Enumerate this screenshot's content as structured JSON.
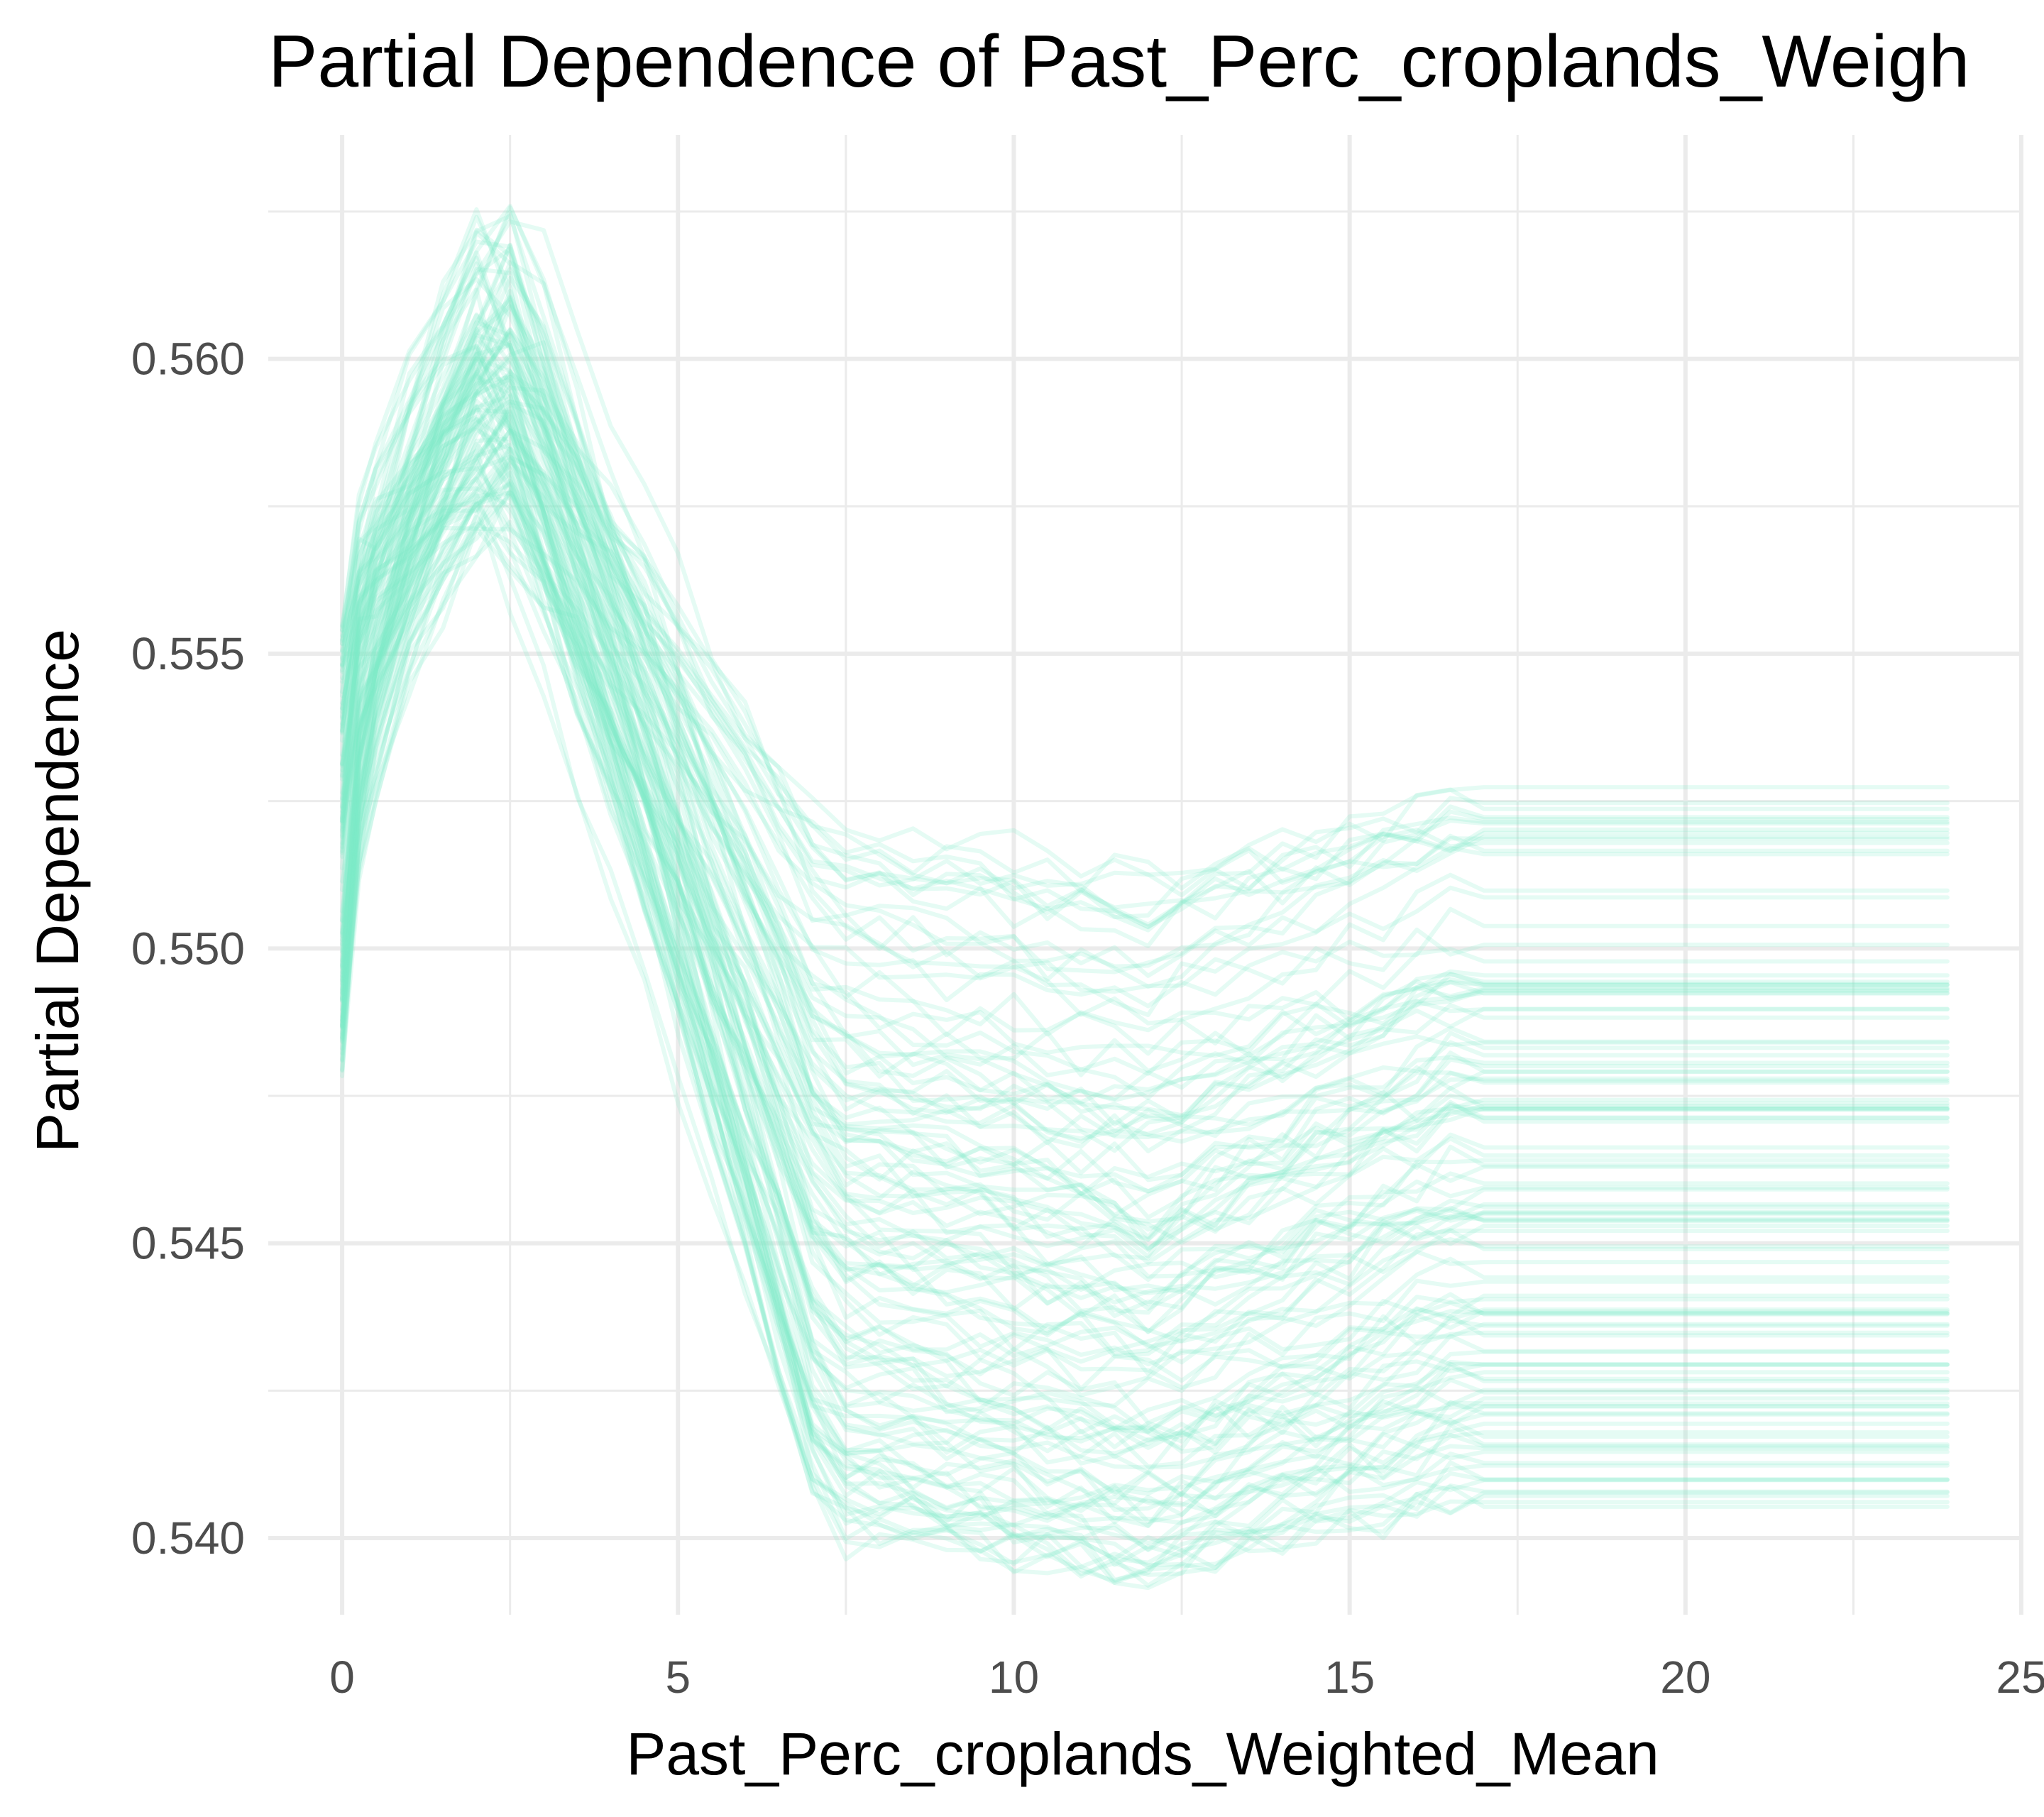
{
  "chart_data": {
    "type": "line",
    "title": "Partial Dependence of Past_Perc_croplands_Weigh",
    "xlabel": "Past_Perc_croplands_Weighted_Mean",
    "ylabel": "Partial Dependence",
    "xlim": [
      -1.1,
      25
    ],
    "ylim": [
      0.5387,
      0.5638
    ],
    "x_ticks": [
      0,
      5,
      10,
      15,
      20,
      25
    ],
    "x_tick_labels": [
      "0",
      "5",
      "10",
      "15",
      "20",
      "25"
    ],
    "x_minor_ticks": [
      2.5,
      7.5,
      12.5,
      17.5,
      22.5
    ],
    "y_ticks": [
      0.54,
      0.545,
      0.55,
      0.555,
      0.56
    ],
    "y_tick_labels": [
      "0.540",
      "0.545",
      "0.550",
      "0.555",
      "0.560"
    ],
    "y_minor_ticks": [
      0.5425,
      0.5475,
      0.5525,
      0.5575,
      0.5625
    ],
    "grid": true,
    "legend": "none",
    "line_color": "#7fecc8",
    "line_alpha": 0.2,
    "x": [
      0,
      0.25,
      0.5,
      1,
      1.5,
      2,
      2.5,
      3,
      3.5,
      4,
      4.5,
      5,
      5.5,
      6,
      6.5,
      7,
      7.5,
      8,
      8.5,
      9,
      9.5,
      10,
      10.5,
      11,
      11.5,
      12,
      12.5,
      13,
      13.5,
      14,
      14.5,
      15,
      15.5,
      16,
      16.5,
      17,
      17.5,
      18,
      19,
      20,
      21,
      22,
      23,
      23.9
    ],
    "curve_count": 120,
    "curve_params": {
      "start_range": [
        0.5478,
        0.5555
      ],
      "peak_range": [
        0.5545,
        0.5632
      ],
      "trough_range": [
        0.5395,
        0.5515
      ],
      "plateau_range": [
        0.5405,
        0.553
      ]
    }
  }
}
